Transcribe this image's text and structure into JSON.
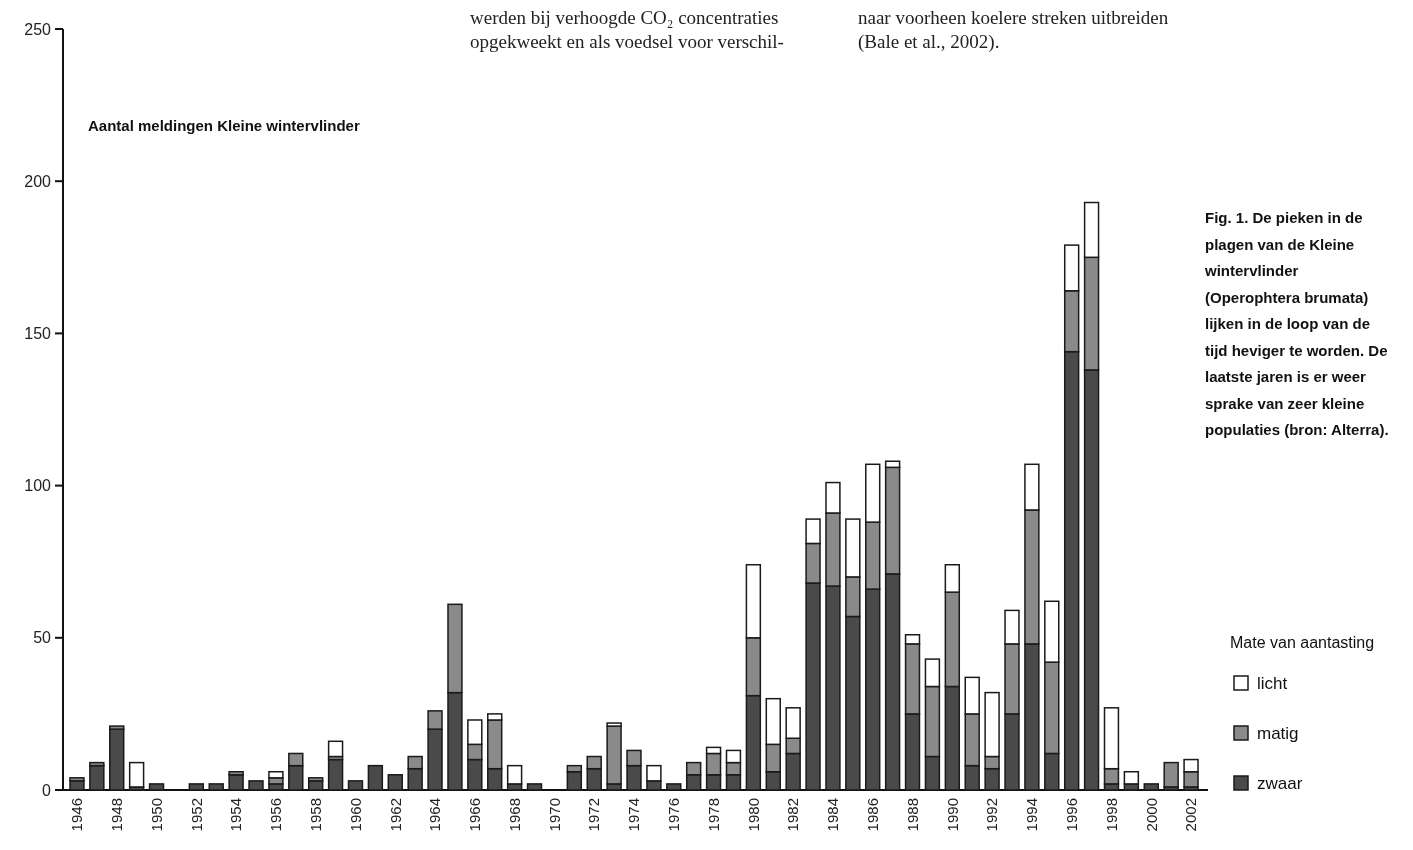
{
  "chart_data": {
    "type": "bar",
    "stacked": true,
    "ylabel": "Aantal meldingen Kleine wintervlinder",
    "legend_title": "Mate van aantasting",
    "legend": "right",
    "annotations": [
      "werden bij verhoogde CO₂ concentraties",
      "opgekweekt en als voedsel voor verschil-",
      "naar voorheen koelere streken uitbreiden",
      "(Bale et al., 2002).",
      "Fig. 1. De pieken in de plagen van de Kleine wintervlinder (Operophtera brumata) lijken in de loop van de tijd heviger te worden. De laatste jaren is er weer sprake van zeer kleine populaties (bron: Alterra)."
    ],
    "categories": [
      "1946",
      null,
      "1948",
      null,
      "1950",
      null,
      "1952",
      null,
      "1954",
      null,
      "1956",
      null,
      "1958",
      null,
      "1960",
      null,
      "1962",
      null,
      "1964",
      null,
      "1966",
      null,
      "1968",
      null,
      "1970",
      null,
      "1972",
      null,
      "1974",
      null,
      "1976",
      null,
      "1978",
      null,
      "1980",
      null,
      "1982",
      null,
      "1984",
      null,
      "1986",
      null,
      "1988",
      null,
      "1990",
      null,
      "1992",
      null,
      "1994",
      null,
      "1996",
      null,
      "1998",
      null,
      "2000",
      null,
      "2002"
    ],
    "series": [
      {
        "name": "zwaar",
        "color": "#4a4a4a",
        "values": [
          3,
          8,
          20,
          1,
          2,
          0,
          2,
          2,
          5,
          3,
          2,
          8,
          3,
          10,
          3,
          8,
          5,
          7,
          20,
          32,
          10,
          7,
          2,
          2,
          0,
          6,
          7,
          2,
          8,
          3,
          2,
          5,
          5,
          5,
          31,
          6,
          12,
          68,
          67,
          57,
          66,
          71,
          25,
          11,
          34,
          8,
          7,
          25,
          48,
          12,
          144,
          138,
          2,
          2,
          2,
          1,
          1
        ]
      },
      {
        "name": "matig",
        "color": "#8a8a8a",
        "values": [
          1,
          1,
          1,
          0,
          0,
          0,
          0,
          0,
          1,
          0,
          2,
          4,
          1,
          1,
          0,
          0,
          0,
          4,
          6,
          29,
          5,
          16,
          0,
          0,
          0,
          2,
          4,
          19,
          5,
          0,
          0,
          4,
          7,
          4,
          19,
          9,
          5,
          13,
          24,
          13,
          22,
          35,
          23,
          23,
          31,
          17,
          4,
          23,
          44,
          30,
          20,
          37,
          5,
          0,
          0,
          8,
          5
        ]
      },
      {
        "name": "licht",
        "color": "#ffffff",
        "values": [
          0,
          0,
          0,
          8,
          0,
          0,
          0,
          0,
          0,
          0,
          2,
          0,
          0,
          5,
          0,
          0,
          0,
          0,
          0,
          0,
          8,
          2,
          6,
          0,
          0,
          0,
          0,
          1,
          0,
          5,
          0,
          0,
          2,
          4,
          24,
          15,
          10,
          8,
          10,
          19,
          19,
          2,
          3,
          9,
          9,
          12,
          21,
          11,
          15,
          20,
          15,
          18,
          20,
          4,
          0,
          0,
          4
        ]
      }
    ],
    "ylim": [
      0,
      250
    ],
    "yticks": [
      0,
      50,
      100,
      150,
      200,
      250
    ]
  }
}
